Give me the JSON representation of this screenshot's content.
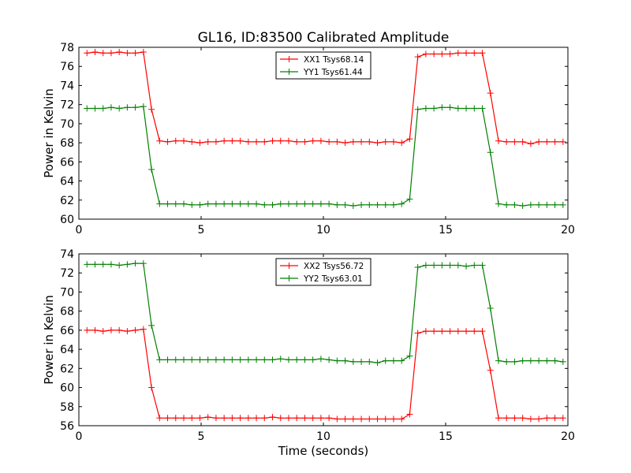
{
  "title": "GL16, ID:83500 Calibrated Amplitude",
  "chart_data": [
    {
      "type": "line",
      "xlabel": "",
      "ylabel": "Power in Kelvin",
      "xlim": [
        0,
        20
      ],
      "ylim": [
        60,
        78
      ],
      "xticks": [
        0,
        5,
        10,
        15,
        20
      ],
      "yticks": [
        60,
        62,
        64,
        66,
        68,
        70,
        72,
        74,
        76,
        78
      ],
      "grid": false,
      "legend_position": "top-center",
      "x": [
        0.33,
        0.66,
        0.99,
        1.32,
        1.65,
        1.98,
        2.31,
        2.64,
        2.97,
        3.3,
        3.63,
        3.96,
        4.29,
        4.62,
        4.95,
        5.28,
        5.61,
        5.94,
        6.27,
        6.6,
        6.93,
        7.26,
        7.59,
        7.92,
        8.25,
        8.58,
        8.91,
        9.24,
        9.57,
        9.9,
        10.23,
        10.56,
        10.89,
        11.22,
        11.55,
        11.88,
        12.21,
        12.54,
        12.87,
        13.2,
        13.53,
        13.86,
        14.19,
        14.52,
        14.85,
        15.18,
        15.51,
        15.84,
        16.17,
        16.5,
        16.83,
        17.16,
        17.49,
        17.82,
        18.15,
        18.48,
        18.81,
        19.14,
        19.47,
        19.8
      ],
      "series": [
        {
          "name": "XX1 Tsys68.14",
          "color": "#ff0000",
          "values": [
            77.4,
            77.5,
            77.4,
            77.4,
            77.5,
            77.4,
            77.4,
            77.5,
            71.5,
            68.2,
            68.1,
            68.2,
            68.2,
            68.1,
            68.0,
            68.1,
            68.1,
            68.2,
            68.2,
            68.2,
            68.1,
            68.1,
            68.1,
            68.2,
            68.2,
            68.2,
            68.1,
            68.1,
            68.2,
            68.2,
            68.1,
            68.1,
            68.0,
            68.1,
            68.1,
            68.1,
            68.0,
            68.1,
            68.1,
            68.0,
            68.4,
            77.0,
            77.3,
            77.3,
            77.3,
            77.3,
            77.4,
            77.4,
            77.4,
            77.4,
            73.2,
            68.2,
            68.1,
            68.1,
            68.1,
            67.9,
            68.1,
            68.1,
            68.1,
            68.1
          ]
        },
        {
          "name": "YY1 Tsys61.44",
          "color": "#008000",
          "values": [
            71.6,
            71.6,
            71.6,
            71.7,
            71.6,
            71.7,
            71.7,
            71.8,
            65.2,
            61.6,
            61.6,
            61.6,
            61.6,
            61.5,
            61.5,
            61.6,
            61.6,
            61.6,
            61.6,
            61.6,
            61.6,
            61.6,
            61.5,
            61.5,
            61.6,
            61.6,
            61.6,
            61.6,
            61.6,
            61.6,
            61.6,
            61.5,
            61.5,
            61.4,
            61.5,
            61.5,
            61.5,
            61.5,
            61.5,
            61.6,
            62.1,
            71.5,
            71.6,
            71.6,
            71.7,
            71.7,
            71.6,
            71.6,
            71.6,
            71.6,
            67.0,
            61.6,
            61.5,
            61.5,
            61.4,
            61.5,
            61.5,
            61.5,
            61.5,
            61.5
          ]
        }
      ]
    },
    {
      "type": "line",
      "xlabel": "Time (seconds)",
      "ylabel": "Power in Kelvin",
      "xlim": [
        0,
        20
      ],
      "ylim": [
        56,
        74
      ],
      "xticks": [
        0,
        5,
        10,
        15,
        20
      ],
      "yticks": [
        56,
        58,
        60,
        62,
        64,
        66,
        68,
        70,
        72,
        74
      ],
      "grid": false,
      "legend_position": "top-center",
      "x": [
        0.33,
        0.66,
        0.99,
        1.32,
        1.65,
        1.98,
        2.31,
        2.64,
        2.97,
        3.3,
        3.63,
        3.96,
        4.29,
        4.62,
        4.95,
        5.28,
        5.61,
        5.94,
        6.27,
        6.6,
        6.93,
        7.26,
        7.59,
        7.92,
        8.25,
        8.58,
        8.91,
        9.24,
        9.57,
        9.9,
        10.23,
        10.56,
        10.89,
        11.22,
        11.55,
        11.88,
        12.21,
        12.54,
        12.87,
        13.2,
        13.53,
        13.86,
        14.19,
        14.52,
        14.85,
        15.18,
        15.51,
        15.84,
        16.17,
        16.5,
        16.83,
        17.16,
        17.49,
        17.82,
        18.15,
        18.48,
        18.81,
        19.14,
        19.47,
        19.8
      ],
      "series": [
        {
          "name": "XX2 Tsys56.72",
          "color": "#ff0000",
          "values": [
            66.0,
            66.0,
            65.9,
            66.0,
            66.0,
            65.9,
            66.0,
            66.1,
            60.0,
            56.8,
            56.8,
            56.8,
            56.8,
            56.8,
            56.8,
            56.9,
            56.8,
            56.8,
            56.8,
            56.8,
            56.8,
            56.8,
            56.8,
            56.9,
            56.8,
            56.8,
            56.8,
            56.8,
            56.8,
            56.8,
            56.8,
            56.7,
            56.7,
            56.7,
            56.7,
            56.7,
            56.7,
            56.7,
            56.7,
            56.7,
            57.2,
            65.7,
            65.9,
            65.9,
            65.9,
            65.9,
            65.9,
            65.9,
            65.9,
            65.9,
            61.8,
            56.8,
            56.8,
            56.8,
            56.8,
            56.7,
            56.7,
            56.8,
            56.8,
            56.8
          ]
        },
        {
          "name": "YY2 Tsys63.01",
          "color": "#008000",
          "values": [
            72.9,
            72.9,
            72.9,
            72.9,
            72.8,
            72.9,
            73.0,
            73.0,
            66.5,
            62.9,
            62.9,
            62.9,
            62.9,
            62.9,
            62.9,
            62.9,
            62.9,
            62.9,
            62.9,
            62.9,
            62.9,
            62.9,
            62.9,
            62.9,
            63.0,
            62.9,
            62.9,
            62.9,
            62.9,
            63.0,
            62.9,
            62.8,
            62.8,
            62.7,
            62.7,
            62.7,
            62.6,
            62.8,
            62.8,
            62.8,
            63.3,
            72.6,
            72.8,
            72.8,
            72.8,
            72.8,
            72.8,
            72.7,
            72.8,
            72.8,
            68.3,
            62.8,
            62.7,
            62.7,
            62.8,
            62.8,
            62.8,
            62.8,
            62.8,
            62.7
          ]
        }
      ]
    }
  ]
}
